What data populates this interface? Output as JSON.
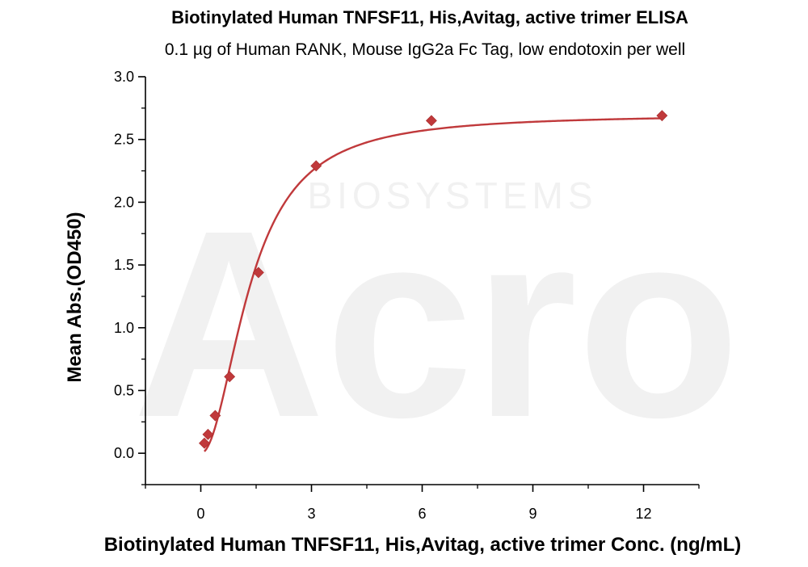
{
  "chart_data": {
    "type": "scatter",
    "title": "Biotinylated Human TNFSF11, His,Avitag, active trimer ELISA",
    "subtitle": "0.1 µg of Human RANK, Mouse IgG2a Fc Tag, low endotoxin per well",
    "xlabel": "Biotinylated Human TNFSF11, His,Avitag, active trimer Conc. (ng/mL)",
    "ylabel": "Mean Abs.(OD450)",
    "xlim": [
      -1.5,
      13.5
    ],
    "ylim": [
      -0.25,
      3.0
    ],
    "xticks": [
      0,
      3,
      6,
      9,
      12
    ],
    "yticks": [
      0.0,
      0.5,
      1.0,
      1.5,
      2.0,
      2.5,
      3.0
    ],
    "x_tick_labels": [
      "0",
      "3",
      "6",
      "9",
      "12"
    ],
    "y_tick_labels": [
      "0.0",
      "0.5",
      "1.0",
      "1.5",
      "2.0",
      "2.5",
      "3.0"
    ],
    "grid": false,
    "series": [
      {
        "marker": "diamond",
        "color": "#c0393b",
        "x": [
          0.098,
          0.195,
          0.391,
          0.781,
          1.563,
          3.125,
          6.25,
          12.5
        ],
        "y": [
          0.08,
          0.15,
          0.3,
          0.61,
          1.44,
          2.29,
          2.65,
          2.69
        ]
      }
    ],
    "fit": {
      "type": "sigmoid",
      "color": "#c0393b",
      "top": 2.7,
      "ec50": 1.35,
      "hill": 2.0
    }
  },
  "watermark": {
    "large": "Acro",
    "small": "BIOSYSTEMS"
  }
}
